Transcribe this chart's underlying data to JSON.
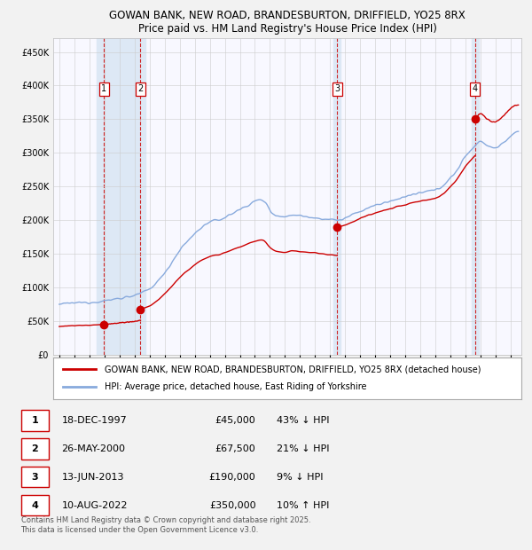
{
  "title_line1": "GOWAN BANK, NEW ROAD, BRANDESBURTON, DRIFFIELD, YO25 8RX",
  "title_line2": "Price paid vs. HM Land Registry's House Price Index (HPI)",
  "background_color": "#f2f2f2",
  "plot_bg_color": "#f8f8ff",
  "ylabel_ticks": [
    "£0",
    "£50K",
    "£100K",
    "£150K",
    "£200K",
    "£250K",
    "£300K",
    "£350K",
    "£400K",
    "£450K"
  ],
  "ytick_values": [
    0,
    50000,
    100000,
    150000,
    200000,
    250000,
    300000,
    350000,
    400000,
    450000
  ],
  "ylim": [
    0,
    470000
  ],
  "xlim_start": 1994.6,
  "xlim_end": 2025.7,
  "sale_dates": [
    1997.96,
    2000.4,
    2013.45,
    2022.61
  ],
  "sale_prices": [
    45000,
    67500,
    190000,
    350000
  ],
  "sale_labels": [
    "1",
    "2",
    "3",
    "4"
  ],
  "sale_color": "#cc0000",
  "hpi_color": "#88aadd",
  "shade_color": "#dde8f5",
  "legend_entries": [
    "GOWAN BANK, NEW ROAD, BRANDESBURTON, DRIFFIELD, YO25 8RX (detached house)",
    "HPI: Average price, detached house, East Riding of Yorkshire"
  ],
  "table_rows": [
    [
      "1",
      "18-DEC-1997",
      "£45,000",
      "43% ↓ HPI"
    ],
    [
      "2",
      "26-MAY-2000",
      "£67,500",
      "21% ↓ HPI"
    ],
    [
      "3",
      "13-JUN-2013",
      "£190,000",
      "9% ↓ HPI"
    ],
    [
      "4",
      "10-AUG-2022",
      "£350,000",
      "10% ↑ HPI"
    ]
  ],
  "footnote": "Contains HM Land Registry data © Crown copyright and database right 2025.\nThis data is licensed under the Open Government Licence v3.0."
}
